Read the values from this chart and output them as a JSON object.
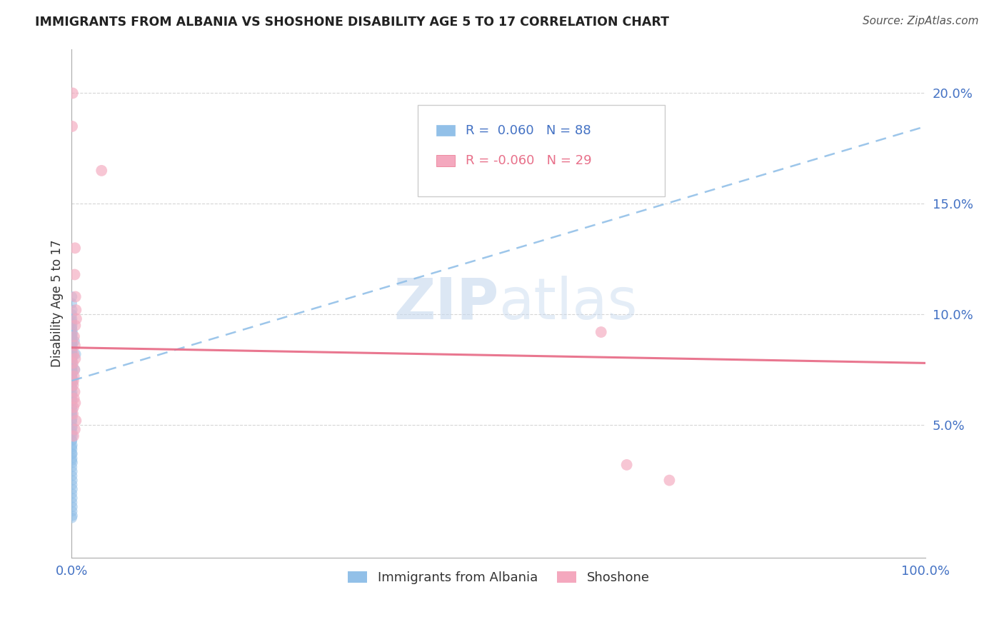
{
  "title": "IMMIGRANTS FROM ALBANIA VS SHOSHONE DISABILITY AGE 5 TO 17 CORRELATION CHART",
  "source": "Source: ZipAtlas.com",
  "ylabel": "Disability Age 5 to 17",
  "ytick_labels": [
    "5.0%",
    "10.0%",
    "15.0%",
    "20.0%"
  ],
  "ytick_values": [
    5.0,
    10.0,
    15.0,
    20.0
  ],
  "xlim": [
    0.0,
    100.0
  ],
  "ylim": [
    -1.0,
    22.0
  ],
  "legend_label_blue": "Immigrants from Albania",
  "legend_label_pink": "Shoshone",
  "r_blue": "0.060",
  "n_blue": "88",
  "r_pink": "-0.060",
  "n_pink": "29",
  "blue_color": "#92c0e8",
  "pink_color": "#f4a8be",
  "trendline_blue_color": "#92c0e8",
  "trendline_pink_color": "#e8708a",
  "blue_trendline": [
    [
      0,
      7.0
    ],
    [
      100,
      18.5
    ]
  ],
  "pink_trendline": [
    [
      0,
      8.5
    ],
    [
      100,
      7.8
    ]
  ],
  "blue_scatter": [
    [
      0.05,
      10.8
    ],
    [
      0.08,
      10.2
    ],
    [
      0.06,
      9.8
    ],
    [
      0.07,
      9.5
    ],
    [
      0.1,
      9.2
    ],
    [
      0.05,
      9.0
    ],
    [
      0.08,
      8.8
    ],
    [
      0.12,
      8.6
    ],
    [
      0.06,
      8.4
    ],
    [
      0.09,
      8.2
    ],
    [
      0.07,
      8.0
    ],
    [
      0.1,
      7.8
    ],
    [
      0.08,
      7.6
    ],
    [
      0.12,
      7.4
    ],
    [
      0.06,
      7.2
    ],
    [
      0.09,
      7.0
    ],
    [
      0.05,
      9.6
    ],
    [
      0.07,
      9.3
    ],
    [
      0.11,
      9.1
    ],
    [
      0.08,
      8.9
    ],
    [
      0.06,
      8.7
    ],
    [
      0.09,
      8.5
    ],
    [
      0.07,
      8.3
    ],
    [
      0.1,
      8.1
    ],
    [
      0.05,
      7.9
    ],
    [
      0.08,
      7.7
    ],
    [
      0.06,
      7.5
    ],
    [
      0.09,
      7.3
    ],
    [
      0.07,
      7.1
    ],
    [
      0.11,
      6.9
    ],
    [
      0.05,
      6.7
    ],
    [
      0.08,
      6.5
    ],
    [
      0.06,
      6.3
    ],
    [
      0.09,
      6.1
    ],
    [
      0.07,
      5.9
    ],
    [
      0.1,
      5.7
    ],
    [
      0.05,
      5.5
    ],
    [
      0.08,
      5.3
    ],
    [
      0.06,
      5.1
    ],
    [
      0.09,
      4.9
    ],
    [
      0.07,
      4.7
    ],
    [
      0.1,
      4.5
    ],
    [
      0.05,
      4.3
    ],
    [
      0.08,
      4.1
    ],
    [
      0.06,
      3.9
    ],
    [
      0.09,
      3.7
    ],
    [
      0.07,
      3.5
    ],
    [
      0.1,
      3.3
    ],
    [
      0.05,
      3.1
    ],
    [
      0.08,
      2.9
    ],
    [
      0.06,
      2.7
    ],
    [
      0.09,
      2.5
    ],
    [
      0.07,
      2.3
    ],
    [
      0.1,
      2.1
    ],
    [
      0.05,
      1.9
    ],
    [
      0.08,
      1.7
    ],
    [
      0.06,
      1.5
    ],
    [
      0.09,
      1.3
    ],
    [
      0.07,
      1.1
    ],
    [
      0.1,
      0.9
    ],
    [
      0.03,
      10.5
    ],
    [
      0.04,
      10.0
    ],
    [
      0.03,
      9.7
    ],
    [
      0.04,
      9.4
    ],
    [
      0.03,
      9.1
    ],
    [
      0.04,
      8.8
    ],
    [
      0.03,
      8.5
    ],
    [
      0.04,
      8.2
    ],
    [
      0.03,
      7.9
    ],
    [
      0.04,
      7.6
    ],
    [
      0.03,
      7.3
    ],
    [
      0.04,
      7.0
    ],
    [
      0.03,
      6.7
    ],
    [
      0.04,
      6.4
    ],
    [
      0.03,
      6.1
    ],
    [
      0.04,
      5.8
    ],
    [
      0.03,
      5.5
    ],
    [
      0.04,
      5.2
    ],
    [
      0.03,
      4.9
    ],
    [
      0.04,
      4.6
    ],
    [
      0.03,
      4.3
    ],
    [
      0.04,
      4.0
    ],
    [
      0.03,
      3.7
    ],
    [
      0.04,
      3.4
    ],
    [
      0.03,
      0.8
    ],
    [
      0.5,
      8.2
    ],
    [
      0.4,
      7.5
    ],
    [
      0.35,
      8.8
    ]
  ],
  "pink_scatter": [
    [
      0.12,
      20.0
    ],
    [
      0.06,
      18.5
    ],
    [
      3.5,
      16.5
    ],
    [
      0.4,
      13.0
    ],
    [
      0.35,
      11.8
    ],
    [
      0.45,
      10.8
    ],
    [
      0.5,
      10.2
    ],
    [
      0.55,
      9.8
    ],
    [
      0.42,
      9.5
    ],
    [
      0.3,
      9.0
    ],
    [
      0.38,
      8.6
    ],
    [
      0.25,
      8.2
    ],
    [
      0.42,
      8.0
    ],
    [
      0.15,
      7.8
    ],
    [
      0.32,
      7.5
    ],
    [
      0.28,
      7.2
    ],
    [
      0.22,
      7.0
    ],
    [
      0.18,
      6.8
    ],
    [
      0.35,
      6.5
    ],
    [
      0.28,
      6.2
    ],
    [
      0.42,
      6.0
    ],
    [
      0.22,
      5.8
    ],
    [
      0.15,
      5.5
    ],
    [
      62.0,
      9.2
    ],
    [
      65.0,
      3.2
    ],
    [
      70.0,
      2.5
    ],
    [
      0.5,
      5.2
    ],
    [
      0.38,
      4.8
    ],
    [
      0.22,
      4.5
    ]
  ]
}
